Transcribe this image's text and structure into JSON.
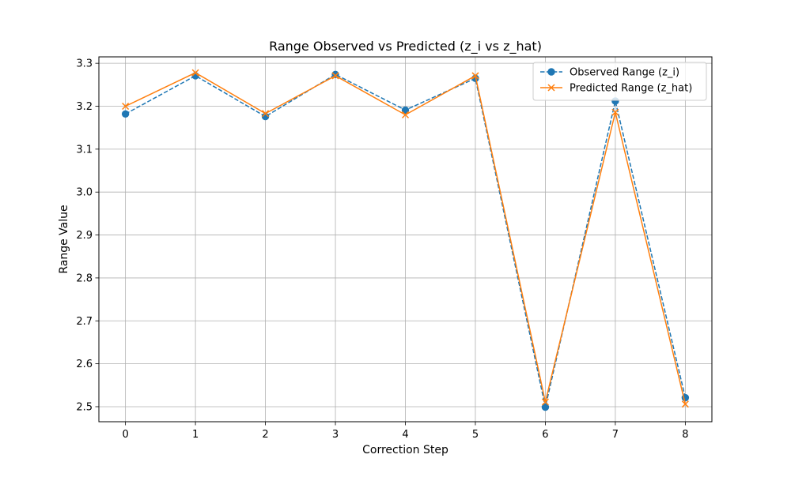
{
  "chart_data": {
    "type": "line",
    "title": "Range Observed vs Predicted (z_i vs z_hat)",
    "xlabel": "Correction Step",
    "ylabel": "Range Value",
    "x": [
      0,
      1,
      2,
      3,
      4,
      5,
      6,
      7,
      8
    ],
    "xticks": [
      0,
      1,
      2,
      3,
      4,
      5,
      6,
      7,
      8
    ],
    "yticks": [
      2.5,
      2.6,
      2.7,
      2.8,
      2.9,
      3.0,
      3.1,
      3.2,
      3.3
    ],
    "ytick_labels": [
      "2.5",
      "2.6",
      "2.7",
      "2.8",
      "2.9",
      "3.0",
      "3.1",
      "3.2",
      "3.3"
    ],
    "xlim": [
      -0.38,
      8.38
    ],
    "ylim": [
      2.465,
      3.315
    ],
    "grid": true,
    "legend_position": "top-right",
    "series": [
      {
        "name": "Observed Range (z_i)",
        "color": "#1f77b4",
        "linestyle": "dashed",
        "marker": "circle",
        "values": [
          3.182,
          3.271,
          3.176,
          3.274,
          3.191,
          3.265,
          2.499,
          3.212,
          2.521
        ]
      },
      {
        "name": "Predicted Range (z_hat)",
        "color": "#ff7f0e",
        "linestyle": "solid",
        "marker": "x",
        "values": [
          3.2,
          3.278,
          3.183,
          3.271,
          3.18,
          3.271,
          2.511,
          3.186,
          2.506
        ]
      }
    ]
  }
}
